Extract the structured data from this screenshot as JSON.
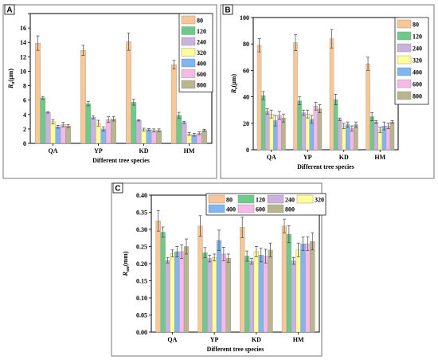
{
  "chart_data": [
    {
      "panel": "A",
      "type": "bar",
      "categories": [
        "QA",
        "YP",
        "KD",
        "HM"
      ],
      "xlabel": "Different tree species",
      "ylabel": "Ra(μm)",
      "ylabel_main": "R",
      "ylabel_sub": "a",
      "ylabel_unit": "(μm)",
      "ylim": [
        0,
        18
      ],
      "yticks": [
        0,
        2,
        4,
        6,
        8,
        10,
        12,
        14,
        16,
        18
      ],
      "ytick_labels": [
        "0",
        "2",
        "4",
        "6",
        "8",
        "10",
        "12",
        "14",
        "16",
        ""
      ],
      "legend_position": "top-right",
      "legend_columns": 1,
      "series": [
        {
          "name": "80",
          "color": "#F7C796",
          "values": [
            13.9,
            12.9,
            14.1,
            10.9
          ],
          "errors": [
            1.0,
            0.7,
            1.2,
            0.6
          ]
        },
        {
          "name": "120",
          "color": "#6CCB8B",
          "values": [
            6.3,
            5.5,
            5.7,
            3.9
          ],
          "errors": [
            0.2,
            0.3,
            0.4,
            0.4
          ]
        },
        {
          "name": "240",
          "color": "#C9B2DE",
          "values": [
            4.3,
            3.6,
            3.2,
            2.9
          ],
          "errors": [
            0.1,
            0.2,
            0.1,
            0.15
          ]
        },
        {
          "name": "320",
          "color": "#FFFF99",
          "values": [
            3.0,
            2.8,
            1.9,
            1.3
          ],
          "errors": [
            0.3,
            0.4,
            0.2,
            0.2
          ]
        },
        {
          "name": "400",
          "color": "#7EB5F2",
          "values": [
            2.3,
            2.0,
            1.9,
            1.2
          ],
          "errors": [
            0.2,
            0.3,
            0.15,
            0.2
          ]
        },
        {
          "name": "600",
          "color": "#F6B8E6",
          "values": [
            2.6,
            3.3,
            1.8,
            1.4
          ],
          "errors": [
            0.3,
            0.4,
            0.2,
            0.2
          ]
        },
        {
          "name": "800",
          "color": "#B9B58E",
          "values": [
            2.4,
            3.4,
            1.8,
            1.8
          ],
          "errors": [
            0.2,
            0.3,
            0.2,
            0.15
          ]
        }
      ]
    },
    {
      "panel": "B",
      "type": "bar",
      "categories": [
        "QA",
        "YP",
        "KD",
        "HM"
      ],
      "xlabel": "Different tree species",
      "ylabel": "Rz(μm)",
      "ylabel_main": "R",
      "ylabel_sub": "z",
      "ylabel_unit": "(μm)",
      "ylim": [
        0,
        100
      ],
      "yticks": [
        0,
        20,
        40,
        60,
        80,
        100
      ],
      "ytick_labels": [
        "0",
        "20",
        "40",
        "60",
        "80",
        "100"
      ],
      "legend_position": "top-right",
      "legend_columns": 1,
      "series": [
        {
          "name": "80",
          "color": "#F7C796",
          "values": [
            79,
            81,
            84,
            65
          ],
          "errors": [
            5,
            6,
            7,
            5
          ]
        },
        {
          "name": "120",
          "color": "#6CCB8B",
          "values": [
            41,
            37,
            38,
            25
          ],
          "errors": [
            3,
            3,
            4,
            3
          ]
        },
        {
          "name": "240",
          "color": "#C9B2DE",
          "values": [
            29,
            28,
            23,
            21
          ],
          "errors": [
            2,
            2,
            1,
            1
          ]
        },
        {
          "name": "320",
          "color": "#FFFF99",
          "values": [
            27,
            27,
            18,
            15
          ],
          "errors": [
            3,
            3,
            2,
            2
          ]
        },
        {
          "name": "400",
          "color": "#7EB5F2",
          "values": [
            22,
            23,
            19,
            18
          ],
          "errors": [
            4,
            3,
            2,
            3
          ]
        },
        {
          "name": "600",
          "color": "#F6B8E6",
          "values": [
            26,
            33,
            16,
            18
          ],
          "errors": [
            3,
            3,
            2,
            2
          ]
        },
        {
          "name": "800",
          "color": "#B9B58E",
          "values": [
            24,
            31,
            19,
            21
          ],
          "errors": [
            3,
            3,
            2,
            1
          ]
        }
      ]
    },
    {
      "panel": "C",
      "type": "bar",
      "categories": [
        "QA",
        "YP",
        "KD",
        "HM"
      ],
      "xlabel": "Different tree species",
      "ylabel": "Rsm(mm)",
      "ylabel_main": "R",
      "ylabel_sub": "sm",
      "ylabel_unit": "(mm)",
      "ylim": [
        0,
        0.4
      ],
      "yticks": [
        0,
        0.05,
        0.1,
        0.15,
        0.2,
        0.25,
        0.3,
        0.35,
        0.4
      ],
      "ytick_labels": [
        "0.00",
        "0.05",
        "0.10",
        "0.15",
        "0.20",
        "0.25",
        "0.30",
        "0.35",
        "0.40"
      ],
      "legend_position": "top",
      "legend_columns": 4,
      "series": [
        {
          "name": "80",
          "color": "#F7C796",
          "values": [
            0.325,
            0.31,
            0.306,
            0.31
          ],
          "errors": [
            0.03,
            0.03,
            0.03,
            0.02
          ]
        },
        {
          "name": "120",
          "color": "#6CCB8B",
          "values": [
            0.292,
            0.232,
            0.222,
            0.286
          ],
          "errors": [
            0.015,
            0.015,
            0.015,
            0.025
          ]
        },
        {
          "name": "240",
          "color": "#C9B2DE",
          "values": [
            0.21,
            0.215,
            0.207,
            0.208
          ],
          "errors": [
            0.008,
            0.01,
            0.008,
            0.01
          ]
        },
        {
          "name": "320",
          "color": "#FFFF99",
          "values": [
            0.23,
            0.218,
            0.235,
            0.24
          ],
          "errors": [
            0.01,
            0.01,
            0.015,
            0.02
          ]
        },
        {
          "name": "400",
          "color": "#7EB5F2",
          "values": [
            0.235,
            0.268,
            0.225,
            0.258
          ],
          "errors": [
            0.015,
            0.03,
            0.02,
            0.02
          ]
        },
        {
          "name": "600",
          "color": "#F6B8E6",
          "values": [
            0.235,
            0.228,
            0.222,
            0.258
          ],
          "errors": [
            0.02,
            0.02,
            0.02,
            0.02
          ]
        },
        {
          "name": "800",
          "color": "#B9B58E",
          "values": [
            0.25,
            0.216,
            0.24,
            0.265
          ],
          "errors": [
            0.022,
            0.012,
            0.02,
            0.025
          ]
        }
      ]
    }
  ]
}
